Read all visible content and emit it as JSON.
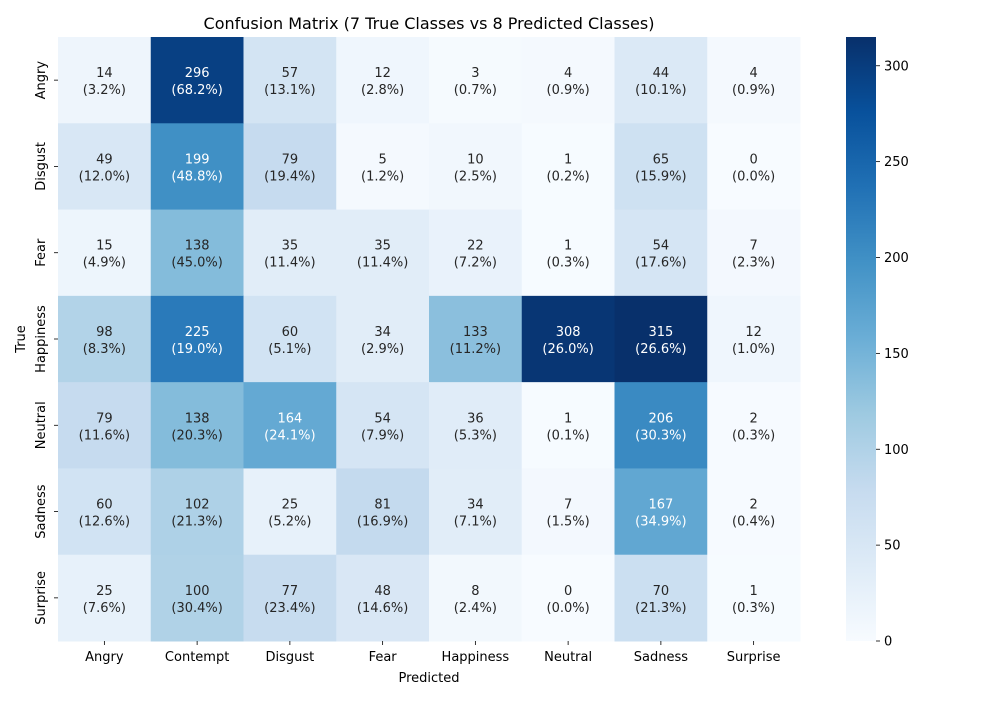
{
  "chart_data": {
    "type": "heatmap",
    "title": "Confusion Matrix (7 True Classes vs 8 Predicted Classes)",
    "xlabel": "Predicted",
    "ylabel": "True",
    "x_categories": [
      "Angry",
      "Contempt",
      "Disgust",
      "Fear",
      "Happiness",
      "Neutral",
      "Sadness",
      "Surprise"
    ],
    "y_categories": [
      "Angry",
      "Disgust",
      "Fear",
      "Happiness",
      "Neutral",
      "Sadness",
      "Surprise"
    ],
    "values": [
      [
        14,
        296,
        57,
        12,
        3,
        4,
        44,
        4
      ],
      [
        49,
        199,
        79,
        5,
        10,
        1,
        65,
        0
      ],
      [
        15,
        138,
        35,
        35,
        22,
        1,
        54,
        7
      ],
      [
        98,
        225,
        60,
        34,
        133,
        308,
        315,
        12
      ],
      [
        79,
        138,
        164,
        54,
        36,
        1,
        206,
        2
      ],
      [
        60,
        102,
        25,
        81,
        34,
        7,
        167,
        2
      ],
      [
        25,
        100,
        77,
        48,
        8,
        0,
        70,
        1
      ]
    ],
    "cell_labels": [
      [
        "(3.2%)",
        "(68.2%)",
        "(13.1%)",
        "(2.8%)",
        "(0.7%)",
        "(0.9%)",
        "(10.1%)",
        "(0.9%)"
      ],
      [
        "(12.0%)",
        "(48.8%)",
        "(19.4%)",
        "(1.2%)",
        "(2.5%)",
        "(0.2%)",
        "(15.9%)",
        "(0.0%)"
      ],
      [
        "(4.9%)",
        "(45.0%)",
        "(11.4%)",
        "(11.4%)",
        "(7.2%)",
        "(0.3%)",
        "(17.6%)",
        "(2.3%)"
      ],
      [
        "(8.3%)",
        "(19.0%)",
        "(5.1%)",
        "(2.9%)",
        "(11.2%)",
        "(26.0%)",
        "(26.6%)",
        "(1.0%)"
      ],
      [
        "(11.6%)",
        "(20.3%)",
        "(24.1%)",
        "(7.9%)",
        "(5.3%)",
        "(0.1%)",
        "(30.3%)",
        "(0.3%)"
      ],
      [
        "(12.6%)",
        "(21.3%)",
        "(5.2%)",
        "(16.9%)",
        "(7.1%)",
        "(1.5%)",
        "(34.9%)",
        "(0.4%)"
      ],
      [
        "(7.6%)",
        "(30.4%)",
        "(23.4%)",
        "(14.6%)",
        "(2.4%)",
        "(0.0%)",
        "(21.3%)",
        "(0.3%)"
      ]
    ],
    "colorscale": "Blues",
    "vmin": 0,
    "vmax": 315,
    "colorbar_ticks": [
      0,
      50,
      100,
      150,
      200,
      250,
      300
    ],
    "grid": false
  }
}
